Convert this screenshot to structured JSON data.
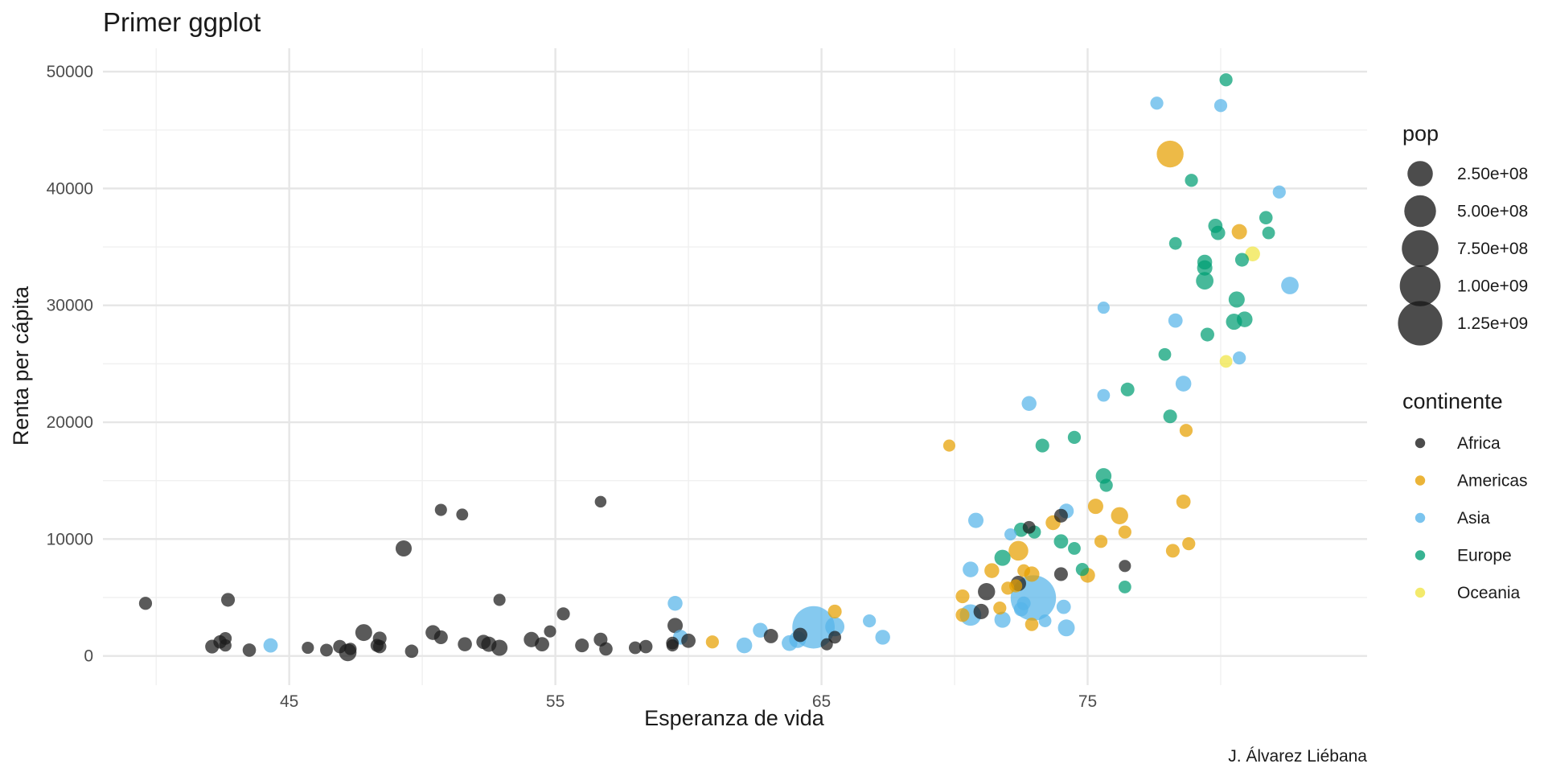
{
  "chart_data": {
    "type": "scatter",
    "title": "Primer ggplot",
    "xlabel": "Esperanza de vida",
    "ylabel": "Renta per cápita",
    "caption": "J. Álvarez Liébana",
    "xlim": [
      38,
      85.5
    ],
    "ylim": [
      -2500,
      52000
    ],
    "x_ticks": [
      45,
      55,
      65,
      75
    ],
    "y_ticks": [
      0,
      10000,
      20000,
      30000,
      40000,
      50000
    ],
    "grid": true,
    "size_legend": {
      "title": "pop",
      "values": [
        250000000,
        500000000,
        750000000,
        1000000000,
        1250000000
      ],
      "labels": [
        "2.50e+08",
        "5.00e+08",
        "7.50e+08",
        "1.00e+09",
        "1.25e+09"
      ]
    },
    "color_legend": {
      "title": "continente",
      "entries": [
        {
          "name": "Africa",
          "color": "#1a1a1a"
        },
        {
          "name": "Americas",
          "color": "#E69F00"
        },
        {
          "name": "Asia",
          "color": "#56B4E9"
        },
        {
          "name": "Europe",
          "color": "#009E73"
        },
        {
          "name": "Oceania",
          "color": "#F0E442"
        }
      ]
    },
    "legend_position": "right",
    "points": [
      {
        "x": 39.6,
        "y": 4500,
        "pop": 10000000,
        "continent": "Africa"
      },
      {
        "x": 42.1,
        "y": 800,
        "pop": 15000000,
        "continent": "Africa"
      },
      {
        "x": 42.4,
        "y": 1200,
        "pop": 12000000,
        "continent": "Africa"
      },
      {
        "x": 42.6,
        "y": 1500,
        "pop": 8000000,
        "continent": "Africa"
      },
      {
        "x": 42.6,
        "y": 900,
        "pop": 6000000,
        "continent": "Africa"
      },
      {
        "x": 42.7,
        "y": 4800,
        "pop": 15000000,
        "continent": "Africa"
      },
      {
        "x": 43.5,
        "y": 500,
        "pop": 12000000,
        "continent": "Africa"
      },
      {
        "x": 44.3,
        "y": 900,
        "pop": 20000000,
        "continent": "Asia"
      },
      {
        "x": 45.7,
        "y": 700,
        "pop": 5000000,
        "continent": "Africa"
      },
      {
        "x": 46.4,
        "y": 500,
        "pop": 8000000,
        "continent": "Africa"
      },
      {
        "x": 46.9,
        "y": 800,
        "pop": 12000000,
        "continent": "Africa"
      },
      {
        "x": 47.2,
        "y": 300,
        "pop": 60000000,
        "continent": "Africa"
      },
      {
        "x": 47.3,
        "y": 600,
        "pop": 6000000,
        "continent": "Africa"
      },
      {
        "x": 47.8,
        "y": 2000,
        "pop": 50000000,
        "continent": "Africa"
      },
      {
        "x": 48.3,
        "y": 900,
        "pop": 10000000,
        "continent": "Africa"
      },
      {
        "x": 48.4,
        "y": 800,
        "pop": 12000000,
        "continent": "Africa"
      },
      {
        "x": 48.4,
        "y": 1500,
        "pop": 15000000,
        "continent": "Africa"
      },
      {
        "x": 49.3,
        "y": 9200,
        "pop": 40000000,
        "continent": "Africa"
      },
      {
        "x": 49.6,
        "y": 400,
        "pop": 12000000,
        "continent": "Africa"
      },
      {
        "x": 50.4,
        "y": 2000,
        "pop": 25000000,
        "continent": "Africa"
      },
      {
        "x": 50.7,
        "y": 1600,
        "pop": 15000000,
        "continent": "Africa"
      },
      {
        "x": 50.7,
        "y": 12500,
        "pop": 5000000,
        "continent": "Africa"
      },
      {
        "x": 51.5,
        "y": 12100,
        "pop": 4000000,
        "continent": "Africa"
      },
      {
        "x": 51.6,
        "y": 1000,
        "pop": 18000000,
        "continent": "Africa"
      },
      {
        "x": 52.3,
        "y": 1200,
        "pop": 20000000,
        "continent": "Africa"
      },
      {
        "x": 52.5,
        "y": 1000,
        "pop": 30000000,
        "continent": "Africa"
      },
      {
        "x": 52.9,
        "y": 4800,
        "pop": 5000000,
        "continent": "Africa"
      },
      {
        "x": 52.9,
        "y": 700,
        "pop": 40000000,
        "continent": "Africa"
      },
      {
        "x": 54.1,
        "y": 1400,
        "pop": 30000000,
        "continent": "Africa"
      },
      {
        "x": 54.5,
        "y": 1000,
        "pop": 20000000,
        "continent": "Africa"
      },
      {
        "x": 54.8,
        "y": 2100,
        "pop": 5000000,
        "continent": "Africa"
      },
      {
        "x": 55.3,
        "y": 3600,
        "pop": 10000000,
        "continent": "Africa"
      },
      {
        "x": 56.0,
        "y": 900,
        "pop": 15000000,
        "continent": "Africa"
      },
      {
        "x": 56.7,
        "y": 1400,
        "pop": 15000000,
        "continent": "Africa"
      },
      {
        "x": 56.7,
        "y": 13200,
        "pop": 3000000,
        "continent": "Africa"
      },
      {
        "x": 56.9,
        "y": 600,
        "pop": 12000000,
        "continent": "Africa"
      },
      {
        "x": 58.0,
        "y": 700,
        "pop": 8000000,
        "continent": "Africa"
      },
      {
        "x": 58.4,
        "y": 800,
        "pop": 12000000,
        "continent": "Africa"
      },
      {
        "x": 59.4,
        "y": 1100,
        "pop": 8000000,
        "continent": "Africa"
      },
      {
        "x": 59.4,
        "y": 900,
        "pop": 5000000,
        "continent": "Africa"
      },
      {
        "x": 59.5,
        "y": 2600,
        "pop": 30000000,
        "continent": "Africa"
      },
      {
        "x": 59.5,
        "y": 4500,
        "pop": 25000000,
        "continent": "Asia"
      },
      {
        "x": 59.7,
        "y": 1600,
        "pop": 25000000,
        "continent": "Asia"
      },
      {
        "x": 60.0,
        "y": 1300,
        "pop": 20000000,
        "continent": "Africa"
      },
      {
        "x": 60.9,
        "y": 1200,
        "pop": 10000000,
        "continent": "Americas"
      },
      {
        "x": 62.1,
        "y": 900,
        "pop": 35000000,
        "continent": "Asia"
      },
      {
        "x": 62.7,
        "y": 2200,
        "pop": 25000000,
        "continent": "Asia"
      },
      {
        "x": 63.1,
        "y": 1700,
        "pop": 20000000,
        "continent": "Africa"
      },
      {
        "x": 63.8,
        "y": 1100,
        "pop": 35000000,
        "continent": "Asia"
      },
      {
        "x": 64.1,
        "y": 1400,
        "pop": 50000000,
        "continent": "Asia"
      },
      {
        "x": 64.2,
        "y": 1800,
        "pop": 20000000,
        "continent": "Africa"
      },
      {
        "x": 64.7,
        "y": 2450,
        "pop": 1110000000,
        "continent": "Asia"
      },
      {
        "x": 65.2,
        "y": 1000,
        "pop": 5000000,
        "continent": "Africa"
      },
      {
        "x": 65.5,
        "y": 2500,
        "pop": 90000000,
        "continent": "Asia"
      },
      {
        "x": 65.5,
        "y": 3800,
        "pop": 15000000,
        "continent": "Americas"
      },
      {
        "x": 65.5,
        "y": 1600,
        "pop": 8000000,
        "continent": "Africa"
      },
      {
        "x": 66.8,
        "y": 3000,
        "pop": 10000000,
        "continent": "Asia"
      },
      {
        "x": 67.3,
        "y": 1600,
        "pop": 25000000,
        "continent": "Asia"
      },
      {
        "x": 69.8,
        "y": 18000,
        "pop": 5000000,
        "continent": "Americas"
      },
      {
        "x": 70.3,
        "y": 5100,
        "pop": 15000000,
        "continent": "Americas"
      },
      {
        "x": 70.3,
        "y": 3500,
        "pop": 15000000,
        "continent": "Americas"
      },
      {
        "x": 70.6,
        "y": 7400,
        "pop": 35000000,
        "continent": "Asia"
      },
      {
        "x": 70.6,
        "y": 3500,
        "pop": 140000000,
        "continent": "Asia"
      },
      {
        "x": 70.8,
        "y": 11600,
        "pop": 30000000,
        "continent": "Asia"
      },
      {
        "x": 71.0,
        "y": 3800,
        "pop": 30000000,
        "continent": "Africa"
      },
      {
        "x": 71.2,
        "y": 5500,
        "pop": 55000000,
        "continent": "Africa"
      },
      {
        "x": 71.4,
        "y": 7300,
        "pop": 25000000,
        "continent": "Americas"
      },
      {
        "x": 71.7,
        "y": 4100,
        "pop": 10000000,
        "continent": "Americas"
      },
      {
        "x": 71.8,
        "y": 8400,
        "pop": 40000000,
        "continent": "Europe"
      },
      {
        "x": 71.8,
        "y": 3100,
        "pop": 40000000,
        "continent": "Asia"
      },
      {
        "x": 72.0,
        "y": 5800,
        "pop": 10000000,
        "continent": "Americas"
      },
      {
        "x": 72.1,
        "y": 10400,
        "pop": 5000000,
        "continent": "Asia"
      },
      {
        "x": 72.3,
        "y": 6000,
        "pop": 10000000,
        "continent": "Americas"
      },
      {
        "x": 72.4,
        "y": 9000,
        "pop": 100000000,
        "continent": "Americas"
      },
      {
        "x": 72.4,
        "y": 6200,
        "pop": 30000000,
        "continent": "Africa"
      },
      {
        "x": 72.5,
        "y": 4000,
        "pop": 20000000,
        "continent": "Asia"
      },
      {
        "x": 72.5,
        "y": 10800,
        "pop": 20000000,
        "continent": "Europe"
      },
      {
        "x": 72.6,
        "y": 4500,
        "pop": 15000000,
        "continent": "Asia"
      },
      {
        "x": 72.6,
        "y": 7300,
        "pop": 8000000,
        "continent": "Americas"
      },
      {
        "x": 72.8,
        "y": 21600,
        "pop": 25000000,
        "continent": "Asia"
      },
      {
        "x": 72.8,
        "y": 11000,
        "pop": 8000000,
        "continent": "Africa"
      },
      {
        "x": 72.9,
        "y": 2700,
        "pop": 12000000,
        "continent": "Americas"
      },
      {
        "x": 72.9,
        "y": 7000,
        "pop": 30000000,
        "continent": "Americas"
      },
      {
        "x": 72.96,
        "y": 4960,
        "pop": 1320000000,
        "continent": "Asia"
      },
      {
        "x": 73.0,
        "y": 10600,
        "pop": 10000000,
        "continent": "Europe"
      },
      {
        "x": 73.3,
        "y": 18000,
        "pop": 15000000,
        "continent": "Europe"
      },
      {
        "x": 73.4,
        "y": 3000,
        "pop": 8000000,
        "continent": "Asia"
      },
      {
        "x": 73.7,
        "y": 11400,
        "pop": 25000000,
        "continent": "Americas"
      },
      {
        "x": 74.0,
        "y": 7000,
        "pop": 15000000,
        "continent": "Africa"
      },
      {
        "x": 74.0,
        "y": 12000,
        "pop": 15000000,
        "continent": "Africa"
      },
      {
        "x": 74.0,
        "y": 9800,
        "pop": 20000000,
        "continent": "Europe"
      },
      {
        "x": 74.1,
        "y": 4200,
        "pop": 20000000,
        "continent": "Asia"
      },
      {
        "x": 74.2,
        "y": 12400,
        "pop": 25000000,
        "continent": "Asia"
      },
      {
        "x": 74.2,
        "y": 2400,
        "pop": 50000000,
        "continent": "Asia"
      },
      {
        "x": 74.5,
        "y": 9200,
        "pop": 8000000,
        "continent": "Europe"
      },
      {
        "x": 74.5,
        "y": 18700,
        "pop": 10000000,
        "continent": "Europe"
      },
      {
        "x": 74.8,
        "y": 7400,
        "pop": 10000000,
        "continent": "Europe"
      },
      {
        "x": 75.0,
        "y": 6900,
        "pop": 25000000,
        "continent": "Americas"
      },
      {
        "x": 75.3,
        "y": 12800,
        "pop": 30000000,
        "continent": "Americas"
      },
      {
        "x": 75.5,
        "y": 9800,
        "pop": 10000000,
        "continent": "Americas"
      },
      {
        "x": 75.6,
        "y": 15400,
        "pop": 35000000,
        "continent": "Europe"
      },
      {
        "x": 75.6,
        "y": 22300,
        "pop": 8000000,
        "continent": "Asia"
      },
      {
        "x": 75.6,
        "y": 29800,
        "pop": 5000000,
        "continent": "Asia"
      },
      {
        "x": 75.7,
        "y": 14600,
        "pop": 10000000,
        "continent": "Europe"
      },
      {
        "x": 76.2,
        "y": 12000,
        "pop": 55000000,
        "continent": "Americas"
      },
      {
        "x": 76.4,
        "y": 10600,
        "pop": 10000000,
        "continent": "Americas"
      },
      {
        "x": 76.4,
        "y": 7700,
        "pop": 5000000,
        "continent": "Africa"
      },
      {
        "x": 76.4,
        "y": 5900,
        "pop": 8000000,
        "continent": "Europe"
      },
      {
        "x": 76.5,
        "y": 22800,
        "pop": 15000000,
        "continent": "Europe"
      },
      {
        "x": 77.6,
        "y": 47300,
        "pop": 10000000,
        "continent": "Asia"
      },
      {
        "x": 77.9,
        "y": 25800,
        "pop": 8000000,
        "continent": "Europe"
      },
      {
        "x": 78.1,
        "y": 42950,
        "pop": 300000000,
        "continent": "Americas"
      },
      {
        "x": 78.1,
        "y": 20500,
        "pop": 15000000,
        "continent": "Europe"
      },
      {
        "x": 78.2,
        "y": 9000,
        "pop": 15000000,
        "continent": "Americas"
      },
      {
        "x": 78.3,
        "y": 35300,
        "pop": 8000000,
        "continent": "Europe"
      },
      {
        "x": 78.3,
        "y": 28700,
        "pop": 20000000,
        "continent": "Asia"
      },
      {
        "x": 78.6,
        "y": 13200,
        "pop": 20000000,
        "continent": "Americas"
      },
      {
        "x": 78.6,
        "y": 23300,
        "pop": 35000000,
        "continent": "Asia"
      },
      {
        "x": 78.7,
        "y": 19300,
        "pop": 10000000,
        "continent": "Americas"
      },
      {
        "x": 78.8,
        "y": 9600,
        "pop": 10000000,
        "continent": "Americas"
      },
      {
        "x": 78.9,
        "y": 40700,
        "pop": 10000000,
        "continent": "Europe"
      },
      {
        "x": 79.4,
        "y": 33200,
        "pop": 30000000,
        "continent": "Europe"
      },
      {
        "x": 79.4,
        "y": 33700,
        "pop": 25000000,
        "continent": "Europe"
      },
      {
        "x": 79.4,
        "y": 32100,
        "pop": 60000000,
        "continent": "Europe"
      },
      {
        "x": 79.5,
        "y": 27500,
        "pop": 15000000,
        "continent": "Europe"
      },
      {
        "x": 79.8,
        "y": 36800,
        "pop": 20000000,
        "continent": "Europe"
      },
      {
        "x": 79.9,
        "y": 36200,
        "pop": 20000000,
        "continent": "Europe"
      },
      {
        "x": 80.0,
        "y": 47100,
        "pop": 10000000,
        "continent": "Asia"
      },
      {
        "x": 80.2,
        "y": 49300,
        "pop": 10000000,
        "continent": "Europe"
      },
      {
        "x": 80.2,
        "y": 25200,
        "pop": 8000000,
        "continent": "Oceania"
      },
      {
        "x": 80.5,
        "y": 28600,
        "pop": 40000000,
        "continent": "Europe"
      },
      {
        "x": 80.6,
        "y": 30500,
        "pop": 40000000,
        "continent": "Europe"
      },
      {
        "x": 80.7,
        "y": 36300,
        "pop": 30000000,
        "continent": "Americas"
      },
      {
        "x": 80.7,
        "y": 25500,
        "pop": 10000000,
        "continent": "Asia"
      },
      {
        "x": 80.8,
        "y": 33900,
        "pop": 15000000,
        "continent": "Europe"
      },
      {
        "x": 80.9,
        "y": 28800,
        "pop": 35000000,
        "continent": "Europe"
      },
      {
        "x": 81.2,
        "y": 34400,
        "pop": 25000000,
        "continent": "Oceania"
      },
      {
        "x": 81.7,
        "y": 37500,
        "pop": 12000000,
        "continent": "Europe"
      },
      {
        "x": 81.8,
        "y": 36200,
        "pop": 8000000,
        "continent": "Europe"
      },
      {
        "x": 82.2,
        "y": 39700,
        "pop": 10000000,
        "continent": "Asia"
      },
      {
        "x": 82.6,
        "y": 31700,
        "pop": 60000000,
        "continent": "Asia"
      }
    ]
  }
}
